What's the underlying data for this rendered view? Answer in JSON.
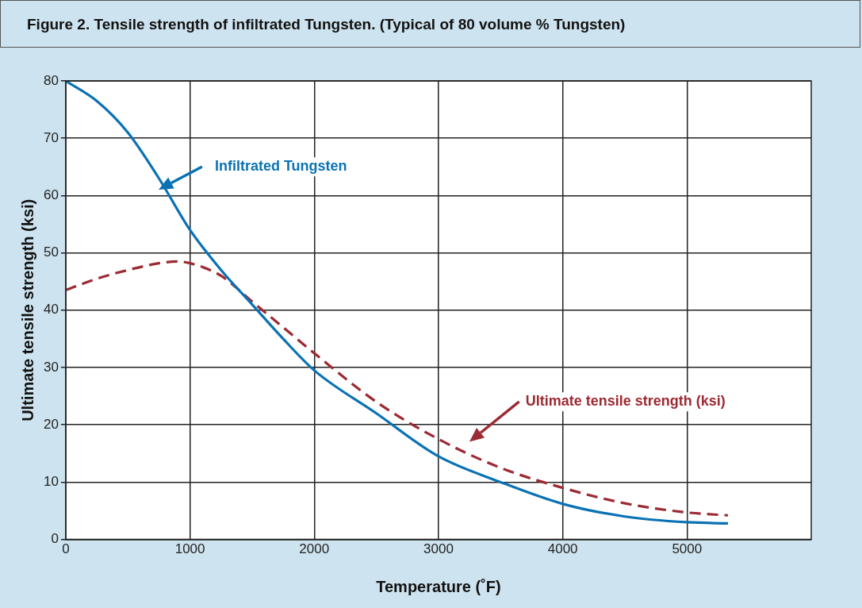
{
  "chart_data": {
    "type": "line",
    "title": "Figure 2. Tensile strength of infiltrated Tungsten. (Typical of 80 volume % Tungsten)",
    "xlabel": "Temperature (˚F)",
    "ylabel": "Ultimate tensile strength (ksi)",
    "xlim": [
      0,
      6000
    ],
    "xticks": [
      0,
      1000,
      2000,
      3000,
      4000,
      5000
    ],
    "ylim": [
      0,
      80
    ],
    "yticks": [
      0,
      10,
      20,
      30,
      40,
      50,
      60,
      70,
      80
    ],
    "grid": true,
    "legend": "top",
    "marker": "none",
    "series": [
      {
        "name": "Infiltrated Tungsten",
        "color": "#0a72b4",
        "line_style": "solid",
        "x": [
          0,
          250,
          500,
          750,
          1000,
          1250,
          1500,
          1750,
          2000,
          2500,
          3000,
          3500,
          4000,
          4500,
          5000,
          5330
        ],
        "values": [
          80,
          76.5,
          71,
          63,
          54,
          47,
          41,
          35,
          29.5,
          22,
          14.5,
          10,
          6.2,
          4,
          3,
          2.8
        ]
      },
      {
        "name": "Ultimate tensile strength (ksi)",
        "color": "#9c2a33",
        "line_style": "dashed",
        "x": [
          0,
          250,
          500,
          750,
          900,
          1000,
          1250,
          1500,
          1750,
          2000,
          2500,
          3000,
          3500,
          4000,
          4500,
          5000,
          5330
        ],
        "values": [
          43.5,
          45.5,
          47,
          48.2,
          48.5,
          48.2,
          46,
          41.5,
          37,
          32.5,
          24,
          17.5,
          12.5,
          9,
          6.3,
          4.7,
          4.2
        ]
      }
    ]
  }
}
